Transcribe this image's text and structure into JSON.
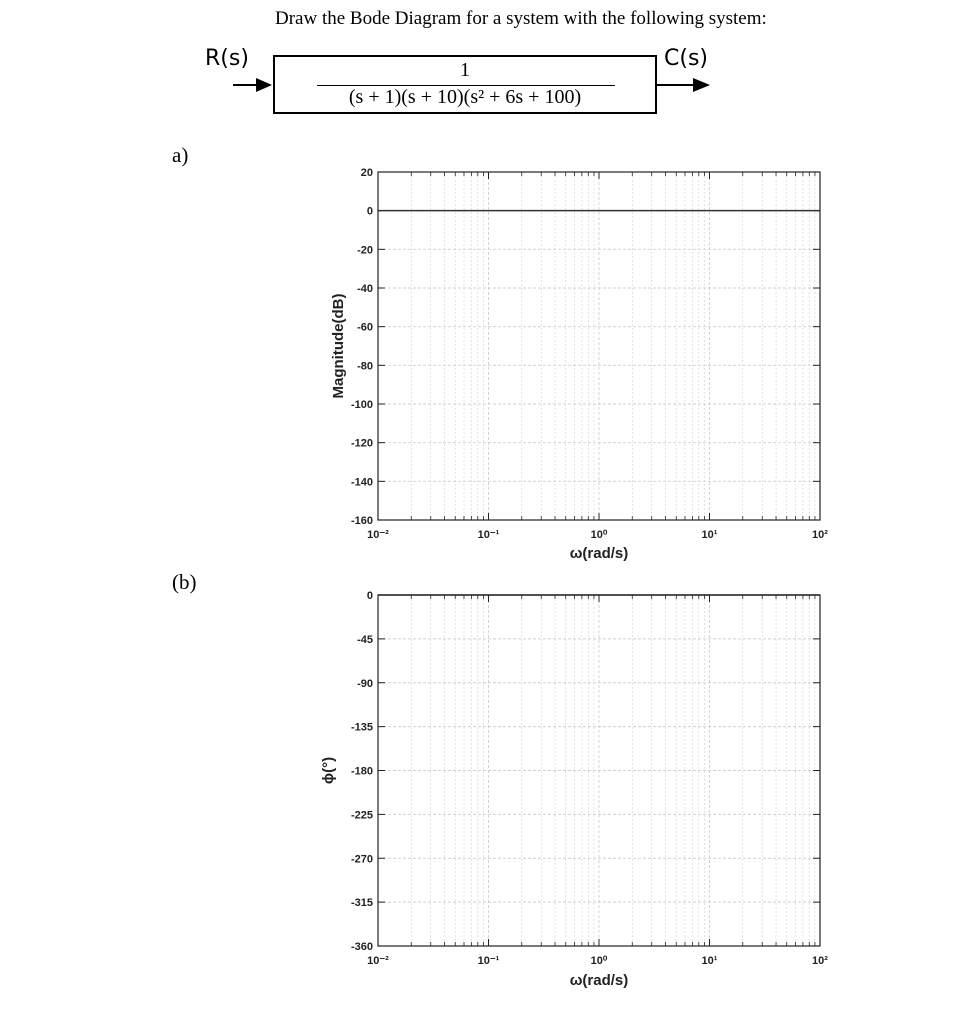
{
  "problem": {
    "title": "Draw the Bode Diagram for a system with the following system:",
    "input_label": "R(s)",
    "output_label": "C(s)",
    "numerator": "1",
    "denominator": "(s + 1)(s + 10)(s² + 6s + 100)"
  },
  "parts": {
    "a": "a)",
    "b": "(b)"
  },
  "colors": {
    "grid": "#cfcfcf",
    "axis": "#222222",
    "zero_line": "#333333"
  },
  "chart_data": [
    {
      "type": "line",
      "xscale": "log",
      "xlim": [
        0.01,
        100
      ],
      "ylim": [
        -160,
        20
      ],
      "xticks": [
        0.01,
        0.1,
        1,
        10,
        100
      ],
      "xtick_labels": [
        "10⁻²",
        "10⁻¹",
        "10⁰",
        "10¹",
        "10²"
      ],
      "yticks": [
        20,
        0,
        -20,
        -40,
        -60,
        -80,
        -100,
        -120,
        -140,
        -160
      ],
      "ytick_labels": [
        "20",
        "0",
        "-20",
        "-40",
        "-60",
        "-80",
        "-100",
        "-120",
        "-140",
        "-160"
      ],
      "xlabel": "ω(rad/s)",
      "ylabel": "Magnitude(dB)",
      "reference_line_y": 0,
      "grid": true,
      "series": []
    },
    {
      "type": "line",
      "xscale": "log",
      "xlim": [
        0.01,
        100
      ],
      "ylim": [
        -360,
        0
      ],
      "xticks": [
        0.01,
        0.1,
        1,
        10,
        100
      ],
      "xtick_labels": [
        "10⁻²",
        "10⁻¹",
        "10⁰",
        "10¹",
        "10²"
      ],
      "yticks": [
        0,
        -45,
        -90,
        -135,
        -180,
        -225,
        -270,
        -315,
        -360
      ],
      "ytick_labels": [
        "0",
        "-45",
        "-90",
        "-135",
        "-180",
        "-225",
        "-270",
        "-315",
        "-360"
      ],
      "xlabel": "ω(rad/s)",
      "ylabel": "ϕ(°)",
      "reference_line_y": 0,
      "grid": true,
      "series": []
    }
  ]
}
